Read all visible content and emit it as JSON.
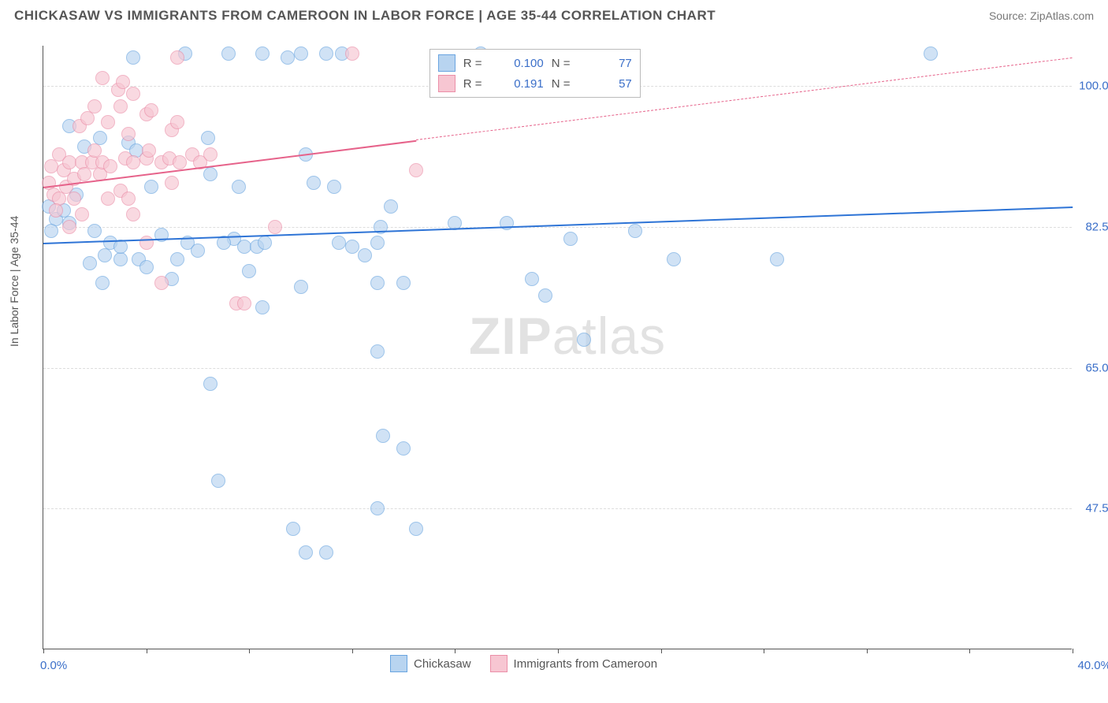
{
  "header": {
    "title": "CHICKASAW VS IMMIGRANTS FROM CAMEROON IN LABOR FORCE | AGE 35-44 CORRELATION CHART",
    "source": "Source: ZipAtlas.com"
  },
  "chart": {
    "type": "scatter",
    "ylabel": "In Labor Force | Age 35-44",
    "xlim": [
      0.0,
      40.0
    ],
    "ylim": [
      30.0,
      105.0
    ],
    "yticks": [
      {
        "v": 47.5,
        "label": "47.5%"
      },
      {
        "v": 65.0,
        "label": "65.0%"
      },
      {
        "v": 82.5,
        "label": "82.5%"
      },
      {
        "v": 100.0,
        "label": "100.0%"
      }
    ],
    "xticks_pos": [
      0,
      4,
      8,
      12,
      16,
      20,
      24,
      28,
      32,
      36,
      40
    ],
    "xaxis_labels": {
      "left": "0.0%",
      "right": "40.0%"
    },
    "grid_color": "#dddddd",
    "background_color": "#ffffff",
    "axis_color": "#555555",
    "watermark": {
      "prefix": "ZIP",
      "suffix": "atlas"
    },
    "series": [
      {
        "name": "Chickasaw",
        "color_fill": "#b8d4f0",
        "color_stroke": "#6aa5e0",
        "trend_color": "#2e74d6",
        "marker_radius": 9,
        "fill_opacity": 0.65,
        "R": "0.100",
        "N": "77",
        "trend": {
          "x1": 0,
          "y1": 80.5,
          "x2": 40,
          "y2": 85.0,
          "solid_until_x": 40
        },
        "points": [
          [
            0.2,
            85.0
          ],
          [
            0.5,
            83.5
          ],
          [
            0.8,
            84.5
          ],
          [
            0.3,
            82.0
          ],
          [
            1.0,
            83.0
          ],
          [
            1.3,
            86.5
          ],
          [
            1.0,
            95.0
          ],
          [
            1.6,
            92.5
          ],
          [
            2.2,
            93.5
          ],
          [
            2.0,
            82.0
          ],
          [
            1.8,
            78.0
          ],
          [
            2.4,
            79.0
          ],
          [
            2.6,
            80.5
          ],
          [
            3.0,
            78.5
          ],
          [
            2.3,
            75.5
          ],
          [
            3.3,
            93.0
          ],
          [
            3.6,
            92.0
          ],
          [
            3.0,
            80.0
          ],
          [
            3.7,
            78.5
          ],
          [
            4.0,
            77.5
          ],
          [
            3.5,
            103.5
          ],
          [
            4.2,
            87.5
          ],
          [
            4.6,
            81.5
          ],
          [
            5.0,
            76.0
          ],
          [
            5.2,
            78.5
          ],
          [
            5.5,
            104.0
          ],
          [
            5.6,
            80.5
          ],
          [
            6.0,
            79.5
          ],
          [
            6.5,
            89.0
          ],
          [
            6.4,
            93.5
          ],
          [
            7.2,
            104.0
          ],
          [
            7.6,
            87.5
          ],
          [
            7.4,
            81.0
          ],
          [
            7.0,
            80.5
          ],
          [
            7.8,
            80.0
          ],
          [
            8.5,
            104.0
          ],
          [
            8.3,
            80.0
          ],
          [
            8.6,
            80.5
          ],
          [
            8.0,
            77.0
          ],
          [
            8.5,
            72.5
          ],
          [
            9.5,
            103.5
          ],
          [
            10.0,
            104.0
          ],
          [
            11.0,
            104.0
          ],
          [
            11.6,
            104.0
          ],
          [
            10.5,
            88.0
          ],
          [
            10.2,
            91.5
          ],
          [
            11.3,
            87.5
          ],
          [
            11.5,
            80.5
          ],
          [
            10.0,
            75.0
          ],
          [
            9.7,
            45.0
          ],
          [
            10.2,
            42.0
          ],
          [
            11.0,
            42.0
          ],
          [
            12.0,
            80.0
          ],
          [
            12.5,
            79.0
          ],
          [
            13.1,
            82.5
          ],
          [
            13.0,
            80.5
          ],
          [
            13.5,
            85.0
          ],
          [
            13.0,
            75.5
          ],
          [
            14.0,
            75.5
          ],
          [
            13.0,
            67.0
          ],
          [
            13.2,
            56.5
          ],
          [
            14.0,
            55.0
          ],
          [
            13.0,
            47.5
          ],
          [
            14.5,
            45.0
          ],
          [
            16.0,
            83.0
          ],
          [
            17.0,
            104.0
          ],
          [
            18.0,
            83.0
          ],
          [
            19.0,
            76.0
          ],
          [
            19.5,
            74.0
          ],
          [
            20.5,
            81.0
          ],
          [
            21.0,
            68.5
          ],
          [
            23.0,
            82.0
          ],
          [
            24.5,
            78.5
          ],
          [
            28.5,
            78.5
          ],
          [
            34.5,
            104.0
          ],
          [
            6.5,
            63.0
          ],
          [
            6.8,
            51.0
          ]
        ]
      },
      {
        "name": "Immigrants from Cameroon",
        "color_fill": "#f7c6d2",
        "color_stroke": "#eb8fa8",
        "trend_color": "#e6628a",
        "marker_radius": 9,
        "fill_opacity": 0.65,
        "R": "0.191",
        "N": "57",
        "trend": {
          "x1": 0,
          "y1": 87.5,
          "x2": 40,
          "y2": 103.5,
          "solid_until_x": 14.5
        },
        "points": [
          [
            0.2,
            88.0
          ],
          [
            0.4,
            86.5
          ],
          [
            0.6,
            86.0
          ],
          [
            0.5,
            84.5
          ],
          [
            0.9,
            87.5
          ],
          [
            0.3,
            90.0
          ],
          [
            0.8,
            89.5
          ],
          [
            1.2,
            88.5
          ],
          [
            0.6,
            91.5
          ],
          [
            1.0,
            90.5
          ],
          [
            1.5,
            90.5
          ],
          [
            1.6,
            89.0
          ],
          [
            1.2,
            86.0
          ],
          [
            1.5,
            84.0
          ],
          [
            1.9,
            90.5
          ],
          [
            2.2,
            89.0
          ],
          [
            2.0,
            92.0
          ],
          [
            2.3,
            90.5
          ],
          [
            1.4,
            95.0
          ],
          [
            1.7,
            96.0
          ],
          [
            2.0,
            97.5
          ],
          [
            2.3,
            101.0
          ],
          [
            2.5,
            95.5
          ],
          [
            2.9,
            99.5
          ],
          [
            3.0,
            97.5
          ],
          [
            3.1,
            100.5
          ],
          [
            2.6,
            90.0
          ],
          [
            3.2,
            91.0
          ],
          [
            3.0,
            87.0
          ],
          [
            3.3,
            86.0
          ],
          [
            3.5,
            90.5
          ],
          [
            3.3,
            94.0
          ],
          [
            3.5,
            99.0
          ],
          [
            4.0,
            96.5
          ],
          [
            4.0,
            91.0
          ],
          [
            4.1,
            92.0
          ],
          [
            4.2,
            97.0
          ],
          [
            4.6,
            90.5
          ],
          [
            4.9,
            91.0
          ],
          [
            5.0,
            88.0
          ],
          [
            5.0,
            94.5
          ],
          [
            5.3,
            90.5
          ],
          [
            5.2,
            95.5
          ],
          [
            5.2,
            103.5
          ],
          [
            5.8,
            91.5
          ],
          [
            6.1,
            90.5
          ],
          [
            6.5,
            91.5
          ],
          [
            3.5,
            84.0
          ],
          [
            4.0,
            80.5
          ],
          [
            4.6,
            75.5
          ],
          [
            2.5,
            86.0
          ],
          [
            7.5,
            73.0
          ],
          [
            7.8,
            73.0
          ],
          [
            9.0,
            82.5
          ],
          [
            12.0,
            104.0
          ],
          [
            14.5,
            89.5
          ],
          [
            1.0,
            82.5
          ]
        ]
      }
    ],
    "legend_top": {
      "rows": [
        {
          "swatch_fill": "#b8d4f0",
          "swatch_stroke": "#6aa5e0",
          "r_label": "R =",
          "r_value": "0.100",
          "n_label": "N =",
          "n_value": "77"
        },
        {
          "swatch_fill": "#f7c6d2",
          "swatch_stroke": "#eb8fa8",
          "r_label": "R =",
          "r_value": "0.191",
          "n_label": "N =",
          "n_value": "57"
        }
      ]
    },
    "legend_bottom": {
      "items": [
        {
          "swatch_fill": "#b8d4f0",
          "swatch_stroke": "#6aa5e0",
          "label": "Chickasaw"
        },
        {
          "swatch_fill": "#f7c6d2",
          "swatch_stroke": "#eb8fa8",
          "label": "Immigrants from Cameroon"
        }
      ]
    }
  }
}
